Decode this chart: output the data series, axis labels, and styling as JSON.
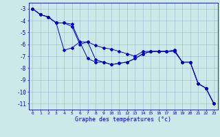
{
  "xlabel": "Graphe des températures (°c)",
  "background_color": "#cce8e8",
  "line_color": "#0000cc",
  "grid_color": "#99bbcc",
  "xlim": [
    -0.5,
    23.5
  ],
  "ylim": [
    -11.5,
    -2.5
  ],
  "yticks": [
    -3,
    -4,
    -5,
    -6,
    -7,
    -8,
    -9,
    -10,
    -11
  ],
  "xticks": [
    0,
    1,
    2,
    3,
    4,
    5,
    6,
    7,
    8,
    9,
    10,
    11,
    12,
    13,
    14,
    15,
    16,
    17,
    18,
    19,
    20,
    21,
    22,
    23
  ],
  "line1_x": [
    0,
    1,
    2,
    3,
    4,
    5,
    6,
    7,
    8,
    9,
    10,
    11,
    12,
    13,
    14,
    15,
    16,
    17,
    18,
    19,
    20,
    21,
    22,
    23
  ],
  "line1_y": [
    -3.0,
    -3.5,
    -3.7,
    -4.2,
    -4.2,
    -4.3,
    -5.8,
    -5.8,
    -6.1,
    -6.3,
    -6.4,
    -6.6,
    -6.8,
    -7.0,
    -6.6,
    -6.6,
    -6.6,
    -6.6,
    -6.6,
    -7.5,
    -7.5,
    -9.3,
    -9.7,
    -11.0
  ],
  "line2_x": [
    0,
    1,
    2,
    3,
    4,
    5,
    6,
    7,
    8,
    9,
    10,
    11,
    12,
    13,
    14,
    15,
    16,
    17,
    18,
    19,
    20,
    21,
    22,
    23
  ],
  "line2_y": [
    -3.0,
    -3.5,
    -3.7,
    -4.2,
    -6.5,
    -6.3,
    -5.8,
    -7.2,
    -7.5,
    -7.5,
    -7.7,
    -7.6,
    -7.5,
    -7.2,
    -6.8,
    -6.6,
    -6.6,
    -6.6,
    -6.5,
    -7.5,
    -7.5,
    -9.3,
    -9.7,
    -11.0
  ],
  "line3_x": [
    0,
    1,
    2,
    3,
    4,
    5,
    6,
    7,
    8,
    9,
    10,
    11,
    12,
    13,
    14,
    15,
    16,
    17,
    18,
    19,
    20,
    21,
    22,
    23
  ],
  "line3_y": [
    -3.0,
    -3.5,
    -3.7,
    -4.2,
    -4.2,
    -4.5,
    -6.0,
    -5.8,
    -7.3,
    -7.5,
    -7.7,
    -7.6,
    -7.5,
    -7.2,
    -6.8,
    -6.6,
    -6.6,
    -6.6,
    -6.5,
    -7.5,
    -7.5,
    -9.3,
    -9.7,
    -11.0
  ],
  "figsize": [
    3.2,
    2.0
  ],
  "dpi": 100
}
